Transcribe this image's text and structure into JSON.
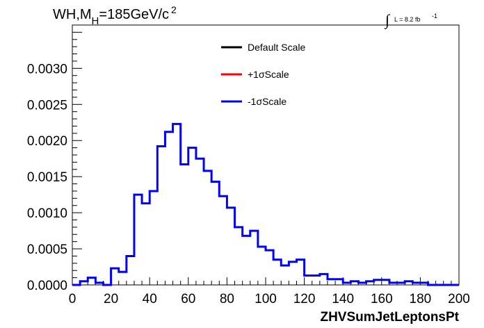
{
  "title": {
    "main": "WH,M",
    "sub": "H",
    "rest": "=185GeV/c",
    "sup": "2"
  },
  "lumi": {
    "integral": "∫",
    "text": "L = 8.2 fb",
    "sup": "-1"
  },
  "legend": [
    {
      "label": "Default Scale",
      "color": "#000000"
    },
    {
      "label": "+1σScale",
      "color": "#ff0000"
    },
    {
      "label": "-1σScale",
      "color": "#0000ff"
    }
  ],
  "chart_data": {
    "type": "line",
    "xlabel": "ZHVSumJetLeptonsPt",
    "ylabel": "",
    "xlim": [
      0,
      200
    ],
    "ylim": [
      0,
      0.0036
    ],
    "x_ticks": [
      "0",
      "20",
      "40",
      "60",
      "80",
      "100",
      "120",
      "140",
      "160",
      "180",
      "200"
    ],
    "y_ticks": [
      "0.0000",
      "0.0005",
      "0.0010",
      "0.0015",
      "0.0020",
      "0.0025",
      "0.0030"
    ],
    "grid": false,
    "legend_position": "top-center",
    "bin_width": 4,
    "bin_edges_start": 0,
    "series": [
      {
        "name": "-1σScale",
        "color": "#0000ff",
        "values": [
          0.0,
          5e-05,
          0.0001,
          3e-05,
          0.0,
          0.00023,
          0.00018,
          0.0004,
          0.00125,
          0.00113,
          0.0013,
          0.00192,
          0.00212,
          0.00223,
          0.00167,
          0.0019,
          0.00175,
          0.00158,
          0.00143,
          0.00123,
          0.00107,
          0.0008,
          0.00068,
          0.00075,
          0.00053,
          0.00048,
          0.00035,
          0.00027,
          0.00032,
          0.00035,
          0.00013,
          0.00013,
          0.00015,
          8e-05,
          8e-05,
          3e-05,
          5e-05,
          3e-05,
          5e-05,
          7e-05,
          7e-05,
          3e-05,
          3e-05,
          5e-05,
          3e-05,
          3e-05,
          0.0,
          0.0,
          0.0,
          0.0
        ]
      }
    ]
  }
}
